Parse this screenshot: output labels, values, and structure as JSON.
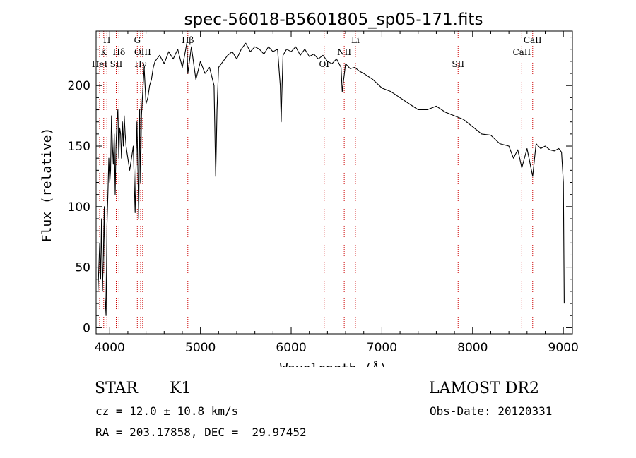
{
  "chart_data": {
    "type": "line",
    "title": "spec-56018-B5601805_sp05-171.fits",
    "xlabel": "Wavelength (Å)",
    "ylabel": "Flux (relative)",
    "xlim": [
      3850,
      9100
    ],
    "ylim": [
      -5,
      245
    ],
    "x_ticks": [
      4000,
      5000,
      6000,
      7000,
      8000,
      9000
    ],
    "y_ticks": [
      0,
      50,
      100,
      150,
      200
    ],
    "line_color": "#000000",
    "marker_color": "#cc0000",
    "series": [
      {
        "x": [
          3870,
          3880,
          3890,
          3900,
          3910,
          3920,
          3930,
          3940,
          3950,
          3960,
          3970,
          3980,
          3990,
          4000,
          4010,
          4020,
          4030,
          4040,
          4050,
          4060,
          4070,
          4080,
          4090,
          4100,
          4110,
          4120,
          4130,
          4140,
          4150,
          4160,
          4170,
          4180,
          4190,
          4200,
          4220,
          4240,
          4260,
          4280,
          4300,
          4310,
          4320,
          4330,
          4340,
          4350,
          4360,
          4380,
          4400,
          4420,
          4440,
          4460,
          4480,
          4500,
          4550,
          4600,
          4650,
          4700,
          4750,
          4800,
          4850,
          4861,
          4900,
          4950,
          5000,
          5050,
          5100,
          5150,
          5168,
          5175,
          5183,
          5200,
          5250,
          5300,
          5350,
          5400,
          5450,
          5500,
          5550,
          5600,
          5650,
          5700,
          5750,
          5800,
          5850,
          5880,
          5890,
          5896,
          5910,
          5950,
          6000,
          6050,
          6100,
          6150,
          6200,
          6250,
          6300,
          6350,
          6400,
          6450,
          6500,
          6550,
          6563,
          6600,
          6650,
          6700,
          6750,
          6800,
          6900,
          7000,
          7100,
          7200,
          7300,
          7400,
          7500,
          7600,
          7700,
          7800,
          7900,
          8000,
          8100,
          8200,
          8300,
          8400,
          8450,
          8498,
          8542,
          8600,
          8662,
          8700,
          8750,
          8800,
          8850,
          8900,
          8950,
          8980,
          9000,
          9010
        ],
        "y": [
          30,
          50,
          70,
          40,
          90,
          30,
          60,
          100,
          25,
          10,
          85,
          110,
          140,
          120,
          130,
          175,
          150,
          135,
          160,
          110,
          150,
          170,
          180,
          140,
          165,
          160,
          140,
          170,
          150,
          175,
          160,
          150,
          145,
          140,
          130,
          140,
          150,
          95,
          170,
          130,
          90,
          180,
          120,
          175,
          190,
          215,
          185,
          190,
          200,
          205,
          215,
          220,
          225,
          218,
          228,
          222,
          230,
          215,
          235,
          210,
          232,
          205,
          220,
          210,
          215,
          200,
          125,
          150,
          180,
          215,
          220,
          225,
          228,
          222,
          230,
          235,
          228,
          232,
          230,
          226,
          232,
          228,
          230,
          200,
          170,
          190,
          225,
          230,
          228,
          232,
          225,
          230,
          224,
          226,
          222,
          225,
          220,
          218,
          222,
          215,
          195,
          218,
          214,
          215,
          212,
          210,
          205,
          198,
          195,
          190,
          185,
          180,
          180,
          183,
          178,
          175,
          172,
          166,
          160,
          159,
          152,
          150,
          140,
          147,
          132,
          148,
          125,
          152,
          148,
          150,
          147,
          146,
          148,
          145,
          120,
          20
        ]
      }
    ],
    "line_markers": [
      {
        "x": 3889,
        "label": "HeI",
        "row": 3
      },
      {
        "x": 3934,
        "label": "K",
        "row": 2
      },
      {
        "x": 3969,
        "label": "H",
        "row": 1
      },
      {
        "x": 4072,
        "label": "SII",
        "row": 3
      },
      {
        "x": 4102,
        "label": "Hδ",
        "row": 2
      },
      {
        "x": 4304,
        "label": "G",
        "row": 1
      },
      {
        "x": 4341,
        "label": "Hγ",
        "row": 3
      },
      {
        "x": 4363,
        "label": "OIII",
        "row": 2
      },
      {
        "x": 4861,
        "label": "Hβ",
        "row": 1
      },
      {
        "x": 6364,
        "label": "OI",
        "row": 3
      },
      {
        "x": 6585,
        "label": "NII",
        "row": 2
      },
      {
        "x": 6708,
        "label": "Li",
        "row": 1
      },
      {
        "x": 7840,
        "label": "SII",
        "row": 3
      },
      {
        "x": 8542,
        "label": "CaII",
        "row": 2
      },
      {
        "x": 8662,
        "label": "CaII",
        "row": 1
      }
    ]
  },
  "info": {
    "class_label": "STAR",
    "subclass_label": "K1",
    "velocity": "cz = 12.0 ± 10.8 km/s",
    "coords": "RA = 203.17858, DEC =  29.97452",
    "survey": "LAMOST DR2",
    "obs_date": "Obs-Date: 20120331"
  }
}
